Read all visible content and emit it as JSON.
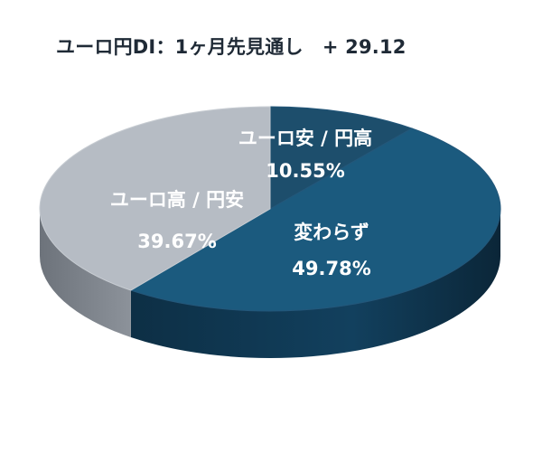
{
  "chart_data": {
    "type": "pie",
    "title": "ユーロ円DI：1ヶ月先見通し　+ 29.12",
    "slices": [
      {
        "label": "ユーロ安 / 円高",
        "value": 10.55,
        "value_label": "10.55%",
        "color": "#1d4e6c"
      },
      {
        "label": "変わらず",
        "value": 49.78,
        "value_label": "49.78%",
        "color": "#1b5a7e"
      },
      {
        "label": "ユーロ高 / 円安",
        "value": 39.67,
        "value_label": "39.67%",
        "color": "#b6bcc4"
      }
    ],
    "style": "3d",
    "legend": "none"
  }
}
